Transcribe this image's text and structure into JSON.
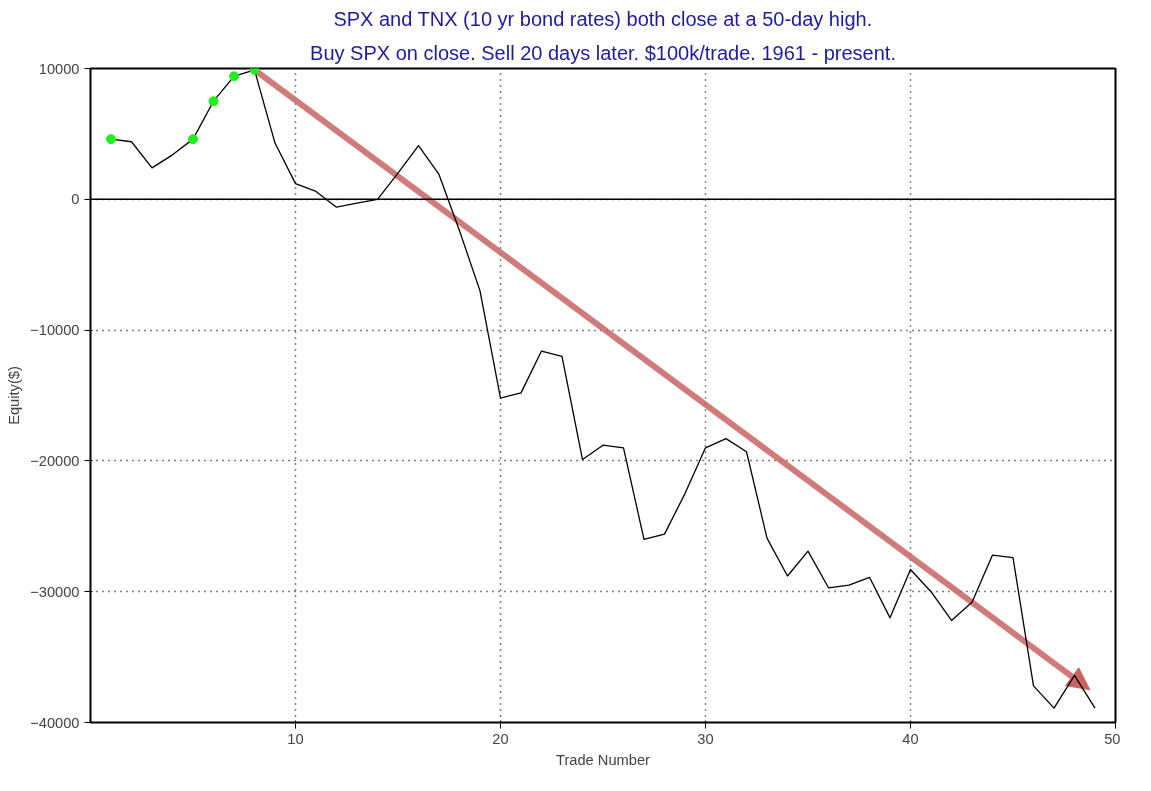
{
  "chart_data": {
    "type": "line",
    "title": "SPX and TNX (10 yr bond rates) both close at a 50-day high.",
    "subtitle": "Buy SPX on close. Sell 20 days later. $100k/trade. 1961 - present.",
    "xlabel": "Trade Number",
    "ylabel": "Equity($)",
    "series": [
      {
        "color": "#000000",
        "marker": "none",
        "x": [
          1,
          2,
          3,
          4,
          5,
          6,
          7,
          8,
          9,
          10,
          11,
          12,
          13,
          14,
          15,
          16,
          17,
          18,
          19,
          20,
          21,
          22,
          23,
          24,
          25,
          26,
          27,
          28,
          29,
          30,
          31,
          32,
          33,
          34,
          35,
          36,
          37,
          38,
          39,
          40,
          41,
          42,
          43,
          44,
          45,
          46,
          47,
          48,
          49
        ],
        "values": [
          4600,
          4400,
          2400,
          3400,
          4600,
          7500,
          9400,
          9900,
          4300,
          1200,
          600,
          -600,
          -300,
          0,
          2000,
          4100,
          1900,
          -2400,
          -7000,
          -15200,
          -14800,
          -11600,
          -12000,
          -19900,
          -18800,
          -19000,
          -26000,
          -25600,
          -22500,
          -19000,
          -18300,
          -19300,
          -25900,
          -28800,
          -26900,
          -29700,
          -29500,
          -28900,
          -32000,
          -28300,
          -30000,
          -32200,
          -30800,
          -27200,
          -27400,
          -37200,
          -38900,
          -36400,
          -38900
        ]
      },
      {
        "type": "scatter",
        "color": "#22ee22",
        "marker": "circle",
        "x": [
          1,
          5,
          6,
          7,
          8
        ],
        "values": [
          4600,
          4600,
          7500,
          9400,
          9900
        ]
      }
    ],
    "xlim": [
      0,
      50
    ],
    "ylim": [
      -40000,
      10000
    ],
    "xticks": [
      10,
      20,
      30,
      40,
      50
    ],
    "yticks": [
      -40000,
      -30000,
      -20000,
      -10000,
      0,
      10000
    ],
    "ref_lines": [
      {
        "axis": "y",
        "value": 0,
        "color": "#000000"
      }
    ],
    "grid": true
  }
}
